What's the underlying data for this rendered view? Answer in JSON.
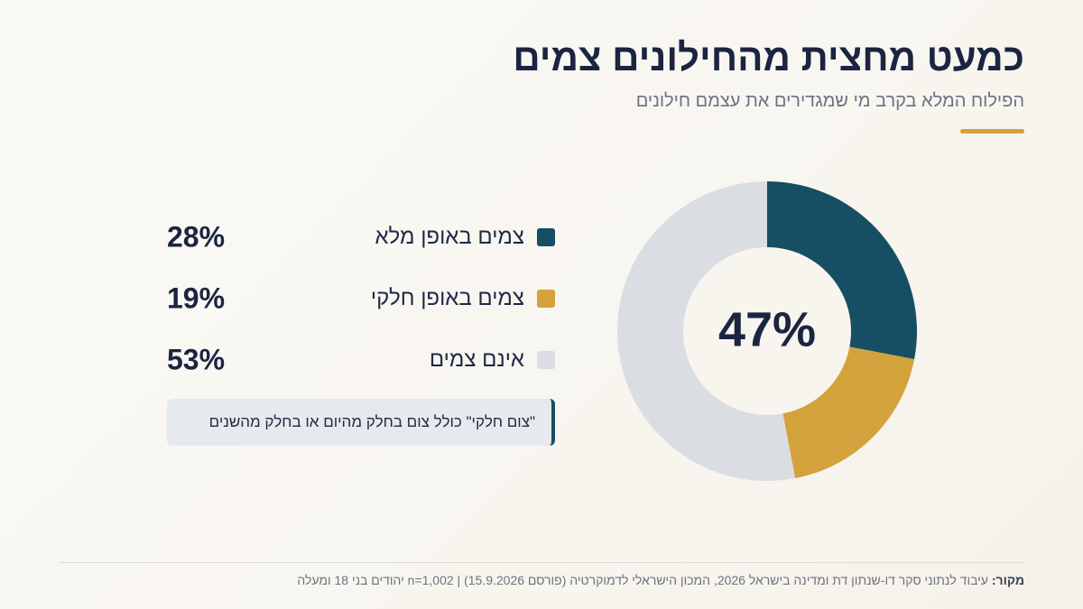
{
  "header": {
    "title": "כמעט מחצית מהחילונים צמים",
    "subtitle": "הפילוח המלא בקרב מי שמגדירים את עצמם חילונים"
  },
  "colors": {
    "full": "#164e63",
    "partial": "#d4a23c",
    "none": "#dadde2",
    "accent": "#d4a23c"
  },
  "chart_data": {
    "type": "pie",
    "categories": [
      "צמים באופן מלא",
      "צמים באופן חלקי",
      "אינם צמים"
    ],
    "values": [
      28,
      19,
      53
    ],
    "value_labels": [
      "28%",
      "19%",
      "53%"
    ],
    "center_label": "47%",
    "unit": "%"
  },
  "legend": {
    "items": [
      {
        "label": "צמים באופן מלא",
        "value": "28%"
      },
      {
        "label": "צמים באופן חלקי",
        "value": "19%"
      },
      {
        "label": "אינם צמים",
        "value": "53%"
      }
    ]
  },
  "note": {
    "text": "\"צום חלקי\" כולל צום בחלק מהיום או בחלק מהשנים"
  },
  "footer": {
    "source_label": "מקור:",
    "source_text": "עיבוד לנתוני סקר דו-שנתון דת ומדינה בישראל 2026, המכון הישראלי לדמוקרטיה (פורסם 15.9.2026) | n=1,002 יהודים בני 18 ומעלה"
  }
}
